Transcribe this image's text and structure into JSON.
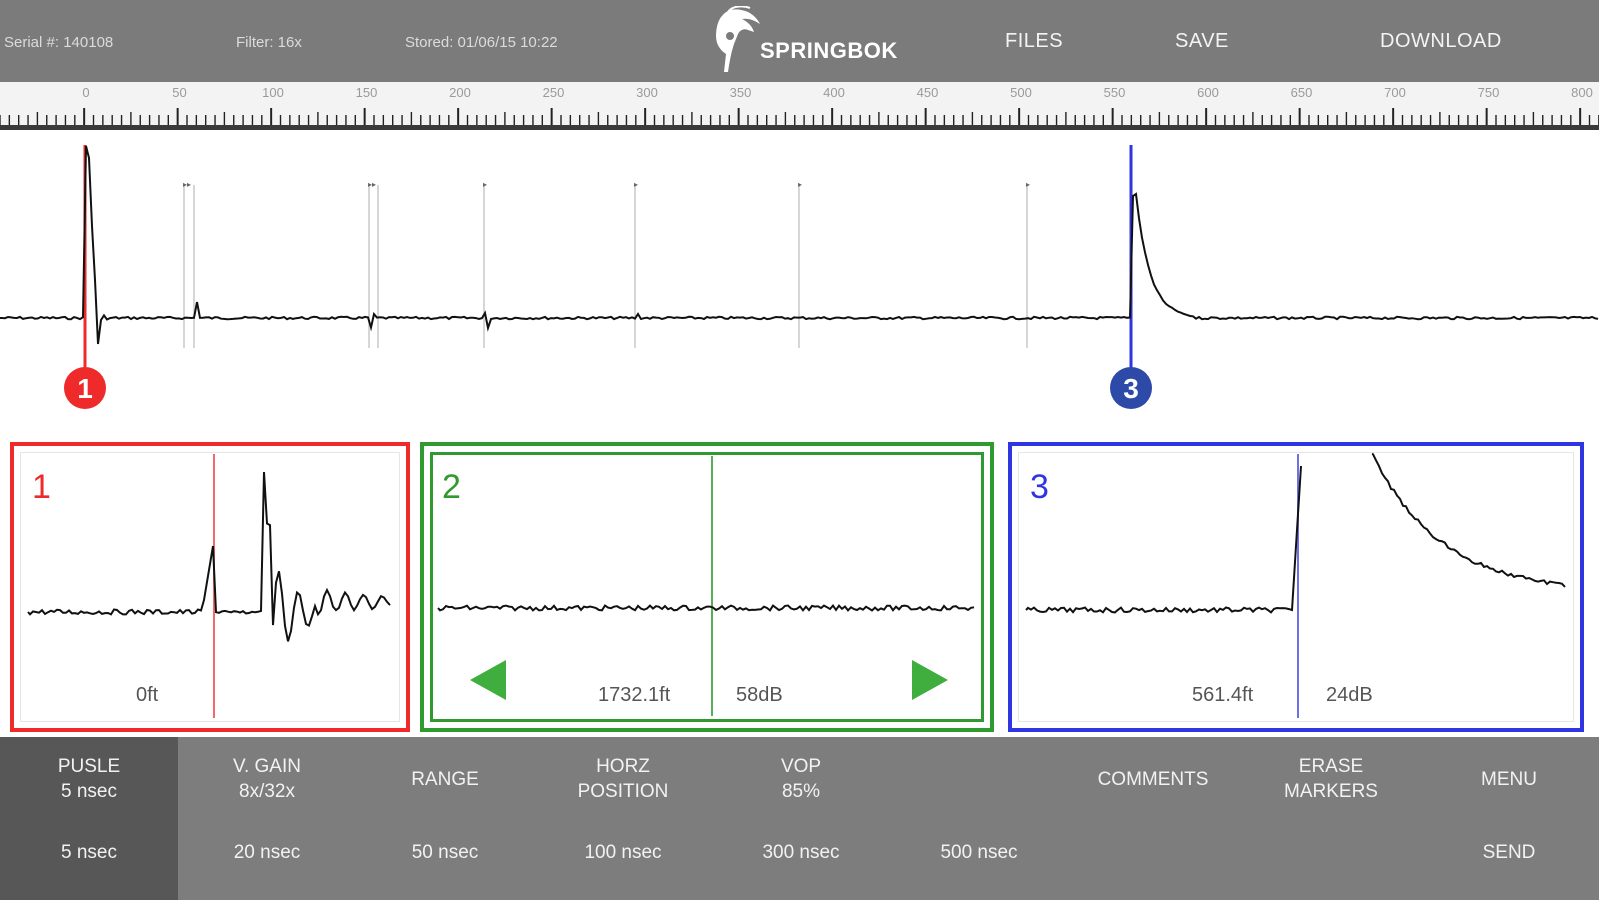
{
  "header": {
    "serial": "Serial #: 140108",
    "filter": "Filter: 16x",
    "stored": "Stored: 01/06/15 10:22",
    "logo_text": "SPRINGBOK",
    "nav": [
      "FILES",
      "SAVE",
      "DOWNLOAD"
    ]
  },
  "ruler": {
    "labels": [
      "0",
      "50",
      "100",
      "150",
      "200",
      "250",
      "300",
      "350",
      "400",
      "450",
      "500",
      "550",
      "600",
      "650",
      "700",
      "750",
      "800"
    ]
  },
  "markers": {
    "marker1": "1",
    "marker3": "3",
    "colors": {
      "red": "#ee2a2a",
      "green": "#2f9a2f",
      "blue": "#2f35e0",
      "blue_badge": "#2d4aa8"
    }
  },
  "panels": {
    "p1": {
      "label": "1",
      "distance": "0ft"
    },
    "p2": {
      "label": "2",
      "distance": "1732.1ft",
      "gain": "58dB"
    },
    "p3": {
      "label": "3",
      "distance": "561.4ft",
      "gain": "24dB"
    }
  },
  "bottom": {
    "top_row": [
      {
        "line1": "PUSLE",
        "line2": "5 nsec"
      },
      {
        "line1": "V. GAIN",
        "line2": "8x/32x"
      },
      {
        "line1": "RANGE",
        "line2": ""
      },
      {
        "line1": "HORZ",
        "line2": "POSITION"
      },
      {
        "line1": "VOP",
        "line2": "85%"
      },
      {
        "line1": "COMMENTS",
        "line2": ""
      },
      {
        "line1": "ERASE",
        "line2": "MARKERS"
      },
      {
        "line1": "MENU",
        "line2": ""
      }
    ],
    "bottom_row": [
      "5 nsec",
      "20 nsec",
      "50 nsec",
      "100 nsec",
      "300 nsec",
      "500 nsec",
      "SEND"
    ]
  }
}
